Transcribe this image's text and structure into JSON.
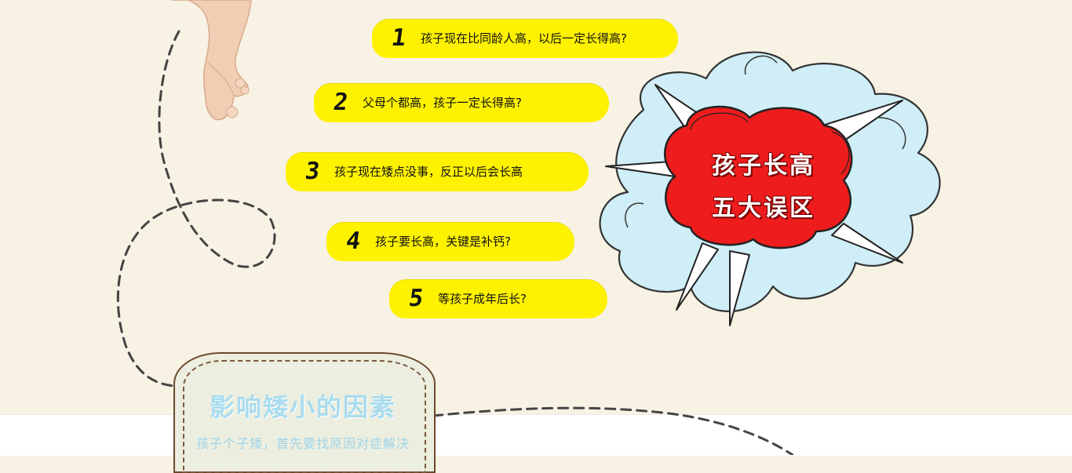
{
  "myths": {
    "items": [
      {
        "num": "1",
        "text": "孩子现在比同龄人高，以后一定长得高?"
      },
      {
        "num": "2",
        "text": "父母个都高，孩子一定长得高?"
      },
      {
        "num": "3",
        "text": "孩子现在矮点没事，反正以后会长高"
      },
      {
        "num": "4",
        "text": "孩子要长高，关键是补钙?"
      },
      {
        "num": "5",
        "text": "等孩子成年后长?"
      }
    ],
    "badge_line1": "孩子长高",
    "badge_line2": "五大误区"
  },
  "factors": {
    "title": "影响矮小的因素",
    "subtitle": "孩子个子矮，首先要找原因对症解决"
  },
  "colors": {
    "pill": "#fff200",
    "badge_red": "#ee1c1c",
    "cloud_blue": "#cfeef7",
    "factor_text": "#a9dcef"
  }
}
